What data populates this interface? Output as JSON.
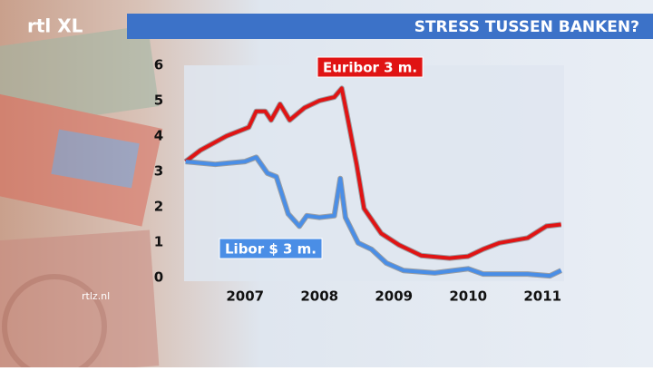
{
  "logo": "rtl XL",
  "watermark": "rtlz.nl",
  "chart_data": {
    "type": "line",
    "title": "STRESS TUSSEN BANKEN?",
    "xlim": [
      2006.18,
      2011.29
    ],
    "xticks": [
      2007,
      2008,
      2009,
      2010,
      2011
    ],
    "ylim": [
      0,
      6
    ],
    "yticks": [
      0,
      1,
      2,
      3,
      4,
      5,
      6
    ],
    "grid": false,
    "series": [
      {
        "name": "Euribor 3 m.",
        "color": "#e01414",
        "x": [
          2006.2,
          2006.4,
          2006.75,
          2007.05,
          2007.15,
          2007.27,
          2007.35,
          2007.47,
          2007.6,
          2007.8,
          2008.0,
          2008.2,
          2008.3,
          2008.38,
          2008.5,
          2008.6,
          2008.83,
          2009.07,
          2009.37,
          2009.75,
          2010.0,
          2010.2,
          2010.42,
          2010.8,
          2011.05,
          2011.25
        ],
        "values": [
          3.28,
          3.6,
          4.0,
          4.25,
          4.7,
          4.7,
          4.45,
          4.9,
          4.45,
          4.8,
          5.0,
          5.1,
          5.35,
          4.5,
          3.2,
          1.95,
          1.25,
          0.92,
          0.62,
          0.55,
          0.6,
          0.8,
          0.98,
          1.12,
          1.45,
          1.5
        ]
      },
      {
        "name": "Libor $ 3 m.",
        "color": "#4a8ee6",
        "x": [
          2006.2,
          2006.6,
          2007.0,
          2007.15,
          2007.3,
          2007.42,
          2007.58,
          2007.73,
          2007.83,
          2008.0,
          2008.2,
          2008.28,
          2008.35,
          2008.52,
          2008.7,
          2008.9,
          2009.13,
          2009.55,
          2010.0,
          2010.2,
          2010.8,
          2011.1,
          2011.25
        ],
        "values": [
          3.28,
          3.2,
          3.28,
          3.4,
          2.95,
          2.85,
          1.8,
          1.45,
          1.75,
          1.7,
          1.75,
          2.8,
          1.7,
          0.98,
          0.8,
          0.41,
          0.2,
          0.13,
          0.25,
          0.1,
          0.1,
          0.05,
          0.2
        ]
      }
    ]
  }
}
